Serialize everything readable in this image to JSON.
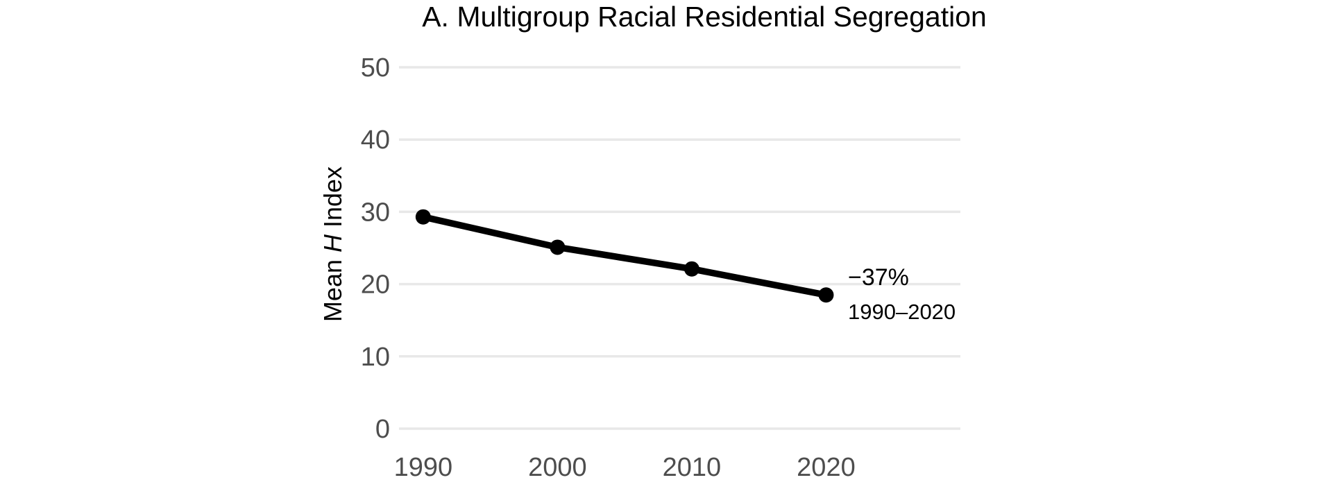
{
  "page": {
    "background": "#ffffff"
  },
  "chart_data": {
    "type": "line",
    "title": "A. Multigroup Racial Residential Segregation",
    "xlabel": "",
    "ylabel": "Mean H Index",
    "ylabel_parts": [
      {
        "text": "Mean ",
        "italic": false
      },
      {
        "text": "H",
        "italic": true
      },
      {
        "text": " Index",
        "italic": false
      }
    ],
    "x": [
      1990,
      2000,
      2010,
      2020
    ],
    "x_tick_labels": [
      "1990",
      "2000",
      "2010",
      "2020"
    ],
    "y_ticks": [
      0,
      10,
      20,
      30,
      40,
      50
    ],
    "ylim": [
      0,
      50
    ],
    "xlim": [
      1988.2,
      2030
    ],
    "series": [
      {
        "name": "Mean H Index",
        "values": [
          29.3,
          25.1,
          22.1,
          18.5
        ]
      }
    ],
    "annotation": {
      "line1": "−37%",
      "line2": "1990–2020"
    },
    "grid": true,
    "legend_position": "none",
    "colors": {
      "line": "#000000",
      "point": "#000000",
      "grid": "#e8e8e8",
      "tick_label": "#4d4d4d",
      "title": "#000000",
      "axis_label": "#000000",
      "annotation": "#000000"
    }
  }
}
